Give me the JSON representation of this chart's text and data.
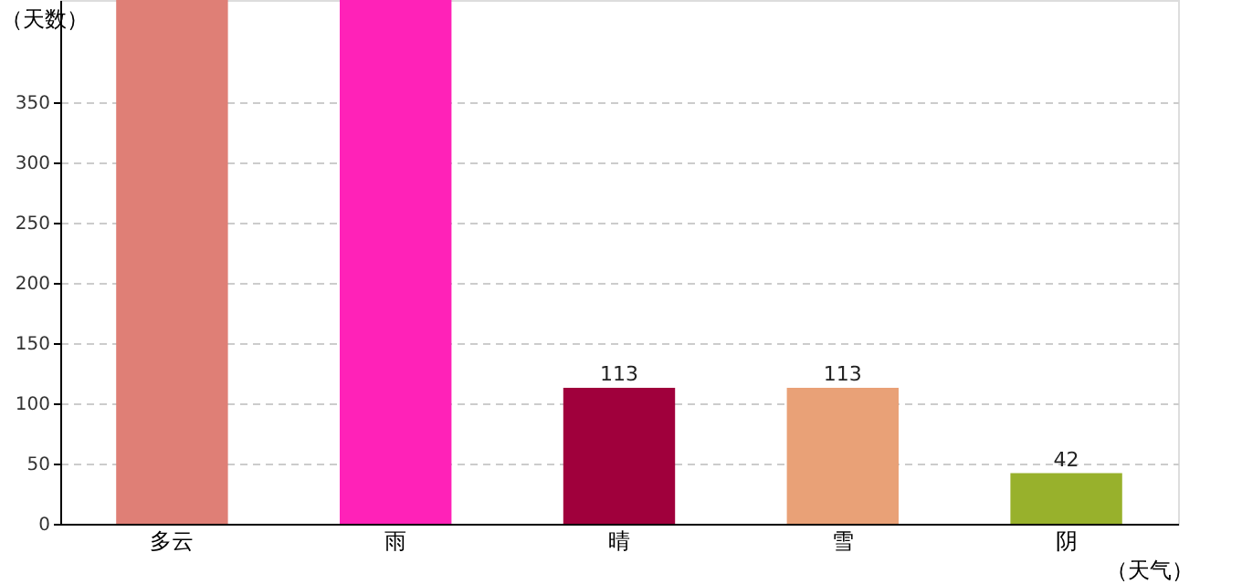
{
  "chart_data": {
    "type": "bar",
    "xlabel": "（天气）",
    "ylabel": "（天数）",
    "categories": [
      "多云",
      "雨",
      "晴",
      "雪",
      "阴"
    ],
    "values": [
      435,
      435,
      113,
      113,
      42
    ],
    "colors": [
      "#df7f76",
      "#ff22b8",
      "#a0003c",
      "#e9a177",
      "#98b12c"
    ],
    "value_labels": [
      null,
      null,
      "113",
      "113",
      "42"
    ],
    "ylim": [
      0,
      435
    ],
    "yticks": [
      0,
      50,
      100,
      150,
      200,
      250,
      300,
      350
    ],
    "grid": "y"
  }
}
